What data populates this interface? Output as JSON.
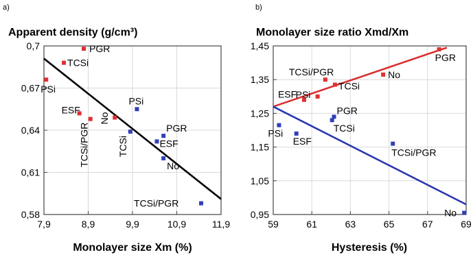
{
  "chart_data": [
    {
      "panel": "a)",
      "type": "scatter",
      "title": "Apparent density (g/cm³)",
      "xlabel": "Monolayer size Xm (%)",
      "ylabel": "",
      "xlim": [
        7.9,
        11.9
      ],
      "ylim": [
        0.58,
        0.7
      ],
      "xticks": [
        "7,9",
        "8,9",
        "9,9",
        "10,9",
        "11,9"
      ],
      "yticks": [
        "0,7",
        "0,67",
        "0,64",
        "0,61",
        "0,58"
      ],
      "xtick_values": [
        7.9,
        8.9,
        9.9,
        10.9,
        11.9
      ],
      "ytick_values": [
        0.7,
        0.67,
        0.64,
        0.61,
        0.58
      ],
      "colors": {
        "red": "#e03030",
        "blue": "#3040b8",
        "line": "#000000"
      },
      "points": [
        {
          "label": "PGR",
          "x": 8.8,
          "y": 0.698,
          "color": "red"
        },
        {
          "label": "TCSi",
          "x": 8.35,
          "y": 0.688,
          "color": "red"
        },
        {
          "label": "PSi",
          "x": 7.95,
          "y": 0.676,
          "color": "red"
        },
        {
          "label": "ESF",
          "x": 8.7,
          "y": 0.652,
          "color": "red"
        },
        {
          "label": "TCSi/PGR",
          "x": 8.95,
          "y": 0.648,
          "color": "red"
        },
        {
          "label": "No",
          "x": 9.5,
          "y": 0.649,
          "color": "red"
        },
        {
          "label": "PSi",
          "x": 10.0,
          "y": 0.655,
          "color": "blue"
        },
        {
          "label": "TCSi",
          "x": 9.85,
          "y": 0.639,
          "color": "blue"
        },
        {
          "label": "PGR",
          "x": 10.6,
          "y": 0.636,
          "color": "blue"
        },
        {
          "label": "ESF",
          "x": 10.45,
          "y": 0.632,
          "color": "blue"
        },
        {
          "label": "No",
          "x": 10.6,
          "y": 0.62,
          "color": "blue"
        },
        {
          "label": "TCSi/PGR",
          "x": 11.45,
          "y": 0.588,
          "color": "blue"
        }
      ],
      "fit_lines": [
        {
          "color": "line",
          "x": [
            7.9,
            11.9
          ],
          "y": [
            0.691,
            0.591
          ]
        }
      ],
      "grid": true
    },
    {
      "panel": "b)",
      "type": "scatter",
      "title": "Monolayer size ratio Xmd/Xm",
      "xlabel": "Hysteresis (%)",
      "ylabel": "",
      "xlim": [
        59,
        69
      ],
      "ylim": [
        0.95,
        1.45
      ],
      "xticks": [
        "59",
        "61",
        "63",
        "65",
        "67",
        "69"
      ],
      "yticks": [
        "1,45",
        "1,35",
        "1,25",
        "1,15",
        "1,05",
        "0,95"
      ],
      "xtick_values": [
        59,
        61,
        63,
        65,
        67,
        69
      ],
      "ytick_values": [
        1.45,
        1.35,
        1.25,
        1.15,
        1.05,
        0.95
      ],
      "colors": {
        "red": "#e03030",
        "blue": "#3040b8",
        "redline": "#d83030",
        "blueline": "#2838b0"
      },
      "points": [
        {
          "label": "PGR",
          "x": 67.6,
          "y": 1.44,
          "color": "red"
        },
        {
          "label": "No",
          "x": 64.7,
          "y": 1.365,
          "color": "red"
        },
        {
          "label": "TCSi/PGR",
          "x": 61.7,
          "y": 1.35,
          "color": "red"
        },
        {
          "label": "TCSi",
          "x": 62.2,
          "y": 1.335,
          "color": "red"
        },
        {
          "label": "PSi",
          "x": 61.3,
          "y": 1.3,
          "color": "red"
        },
        {
          "label": "ESF",
          "x": 60.6,
          "y": 1.29,
          "color": "red"
        },
        {
          "label": "PGR",
          "x": 62.15,
          "y": 1.24,
          "color": "blue"
        },
        {
          "label": "TCSi",
          "x": 62.05,
          "y": 1.23,
          "color": "blue"
        },
        {
          "label": "PSi",
          "x": 59.3,
          "y": 1.215,
          "color": "blue"
        },
        {
          "label": "ESF",
          "x": 60.2,
          "y": 1.19,
          "color": "blue"
        },
        {
          "label": "TCSi/PGR",
          "x": 65.2,
          "y": 1.16,
          "color": "blue"
        },
        {
          "label": "No",
          "x": 68.9,
          "y": 0.955,
          "color": "blue"
        }
      ],
      "fit_lines": [
        {
          "color": "redline",
          "x": [
            59,
            68
          ],
          "y": [
            1.27,
            1.445
          ]
        },
        {
          "color": "blueline",
          "x": [
            59,
            69
          ],
          "y": [
            1.27,
            0.98
          ]
        }
      ],
      "grid": true
    }
  ]
}
